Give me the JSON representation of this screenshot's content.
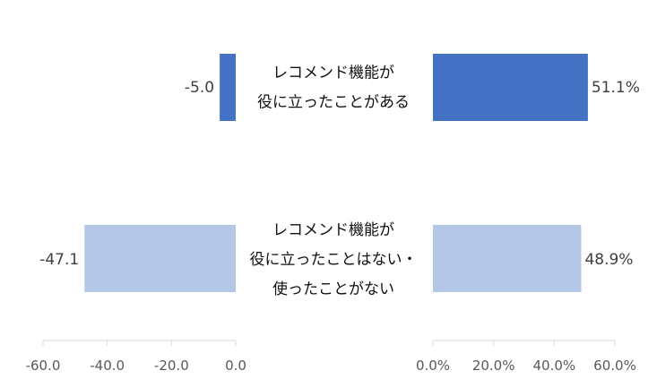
{
  "chart_data": {
    "type": "bar",
    "orientation": "horizontal",
    "layout": "butterfly",
    "categories": [
      [
        "レコメンド機能が",
        "役に立ったことがある"
      ],
      [
        "レコメンド機能が",
        "役に立ったことはない・",
        "使ったことがない"
      ]
    ],
    "left_panel": {
      "values": [
        -5.0,
        -47.1
      ],
      "data_labels": [
        "-5.0",
        "-47.1"
      ],
      "xlim": [
        -60,
        0
      ],
      "ticks": [
        -60,
        -40,
        -20,
        0
      ],
      "tick_labels": [
        "-60.0",
        "-40.0",
        "-20.0",
        "0.0"
      ]
    },
    "right_panel": {
      "values": [
        51.1,
        48.9
      ],
      "data_labels": [
        "51.1%",
        "48.9%"
      ],
      "xlim": [
        0,
        60
      ],
      "ticks": [
        0,
        20,
        40,
        60
      ],
      "tick_labels": [
        "0.0%",
        "20.0%",
        "40.0%",
        "60.0%"
      ]
    },
    "colors": [
      "#4472c4",
      "#b4c7e7"
    ],
    "title": "",
    "xlabel": "",
    "ylabel": "",
    "grid": false,
    "legend": "none"
  }
}
